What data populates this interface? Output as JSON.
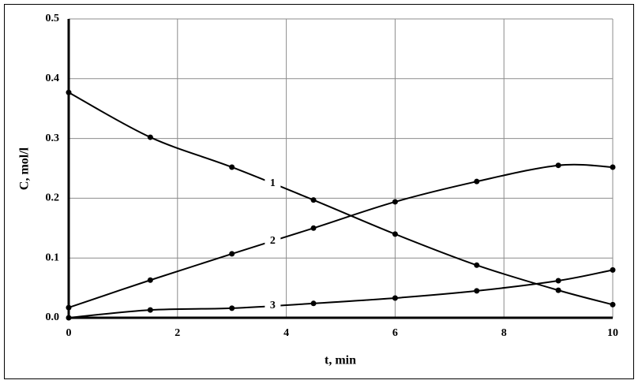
{
  "chart_data": {
    "type": "line",
    "x_label": "t, min",
    "y_label": "C, mol/l",
    "x": [
      0,
      1.5,
      3,
      4.5,
      6,
      7.5,
      9,
      10
    ],
    "series": [
      {
        "name": "1",
        "color": "#000000",
        "values": [
          0.377,
          0.302,
          0.252,
          0.197,
          0.14,
          0.088,
          0.046,
          0.022
        ]
      },
      {
        "name": "2",
        "color": "#000000",
        "values": [
          0.017,
          0.063,
          0.107,
          0.15,
          0.194,
          0.228,
          0.255,
          0.252
        ]
      },
      {
        "name": "3",
        "color": "#000000",
        "values": [
          0.0,
          0.013,
          0.016,
          0.024,
          0.033,
          0.045,
          0.062,
          0.08
        ]
      }
    ],
    "xlim": [
      0,
      10
    ],
    "xticks": [
      0,
      2,
      4,
      6,
      8,
      10
    ],
    "ylim": [
      0,
      0.5
    ],
    "yticks": [
      {
        "value": 0,
        "label": "0.0"
      },
      0.1,
      0.2,
      0.3,
      0.4,
      0.5
    ],
    "grid": true
  }
}
